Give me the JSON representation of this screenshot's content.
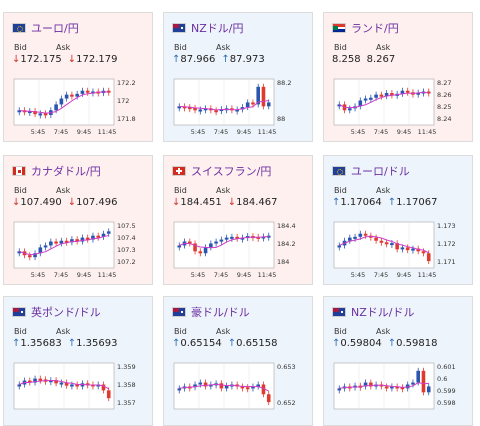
{
  "bid_label": "Bid",
  "ask_label": "Ask",
  "cards": [
    {
      "pair": "ユーロ/円",
      "flag": "eu-flag-icon",
      "dir": "down",
      "bid": "172.175",
      "ask": "172.179",
      "yticks": [
        "172.2",
        "172",
        "171.8"
      ],
      "xticks": [
        "5:45",
        "7:45",
        "9:45",
        "11:45"
      ]
    },
    {
      "pair": "NZドル/円",
      "flag": "nz-flag-icon",
      "dir": "up",
      "bid": "87.966",
      "ask": "87.973",
      "yticks": [
        "88.2",
        "88"
      ],
      "xticks": [
        "5:45",
        "7:45",
        "9:45",
        "11:45"
      ]
    },
    {
      "pair": "ランド/円",
      "flag": "za-flag-icon",
      "dir": "none",
      "bid": "8.258",
      "ask": "8.267",
      "yticks": [
        "8.27",
        "8.26",
        "8.25",
        "8.24"
      ],
      "xticks": [
        "5:45",
        "7:45",
        "9:45",
        "11:45"
      ]
    },
    {
      "pair": "カナダドル/円",
      "flag": "ca-flag-icon",
      "dir": "down",
      "bid": "107.490",
      "ask": "107.496",
      "yticks": [
        "107.5",
        "107.4",
        "107.3",
        "107.2"
      ],
      "xticks": [
        "5:45",
        "7:45",
        "9:45",
        "11:45"
      ]
    },
    {
      "pair": "スイスフラン/円",
      "flag": "ch-flag-icon",
      "dir": "down",
      "bid": "184.451",
      "ask": "184.467",
      "yticks": [
        "184.4",
        "184.2",
        "184"
      ],
      "xticks": [
        "5:45",
        "7:45",
        "9:45",
        "11:45"
      ]
    },
    {
      "pair": "ユーロ/ドル",
      "flag": "eu-flag-icon",
      "dir": "up",
      "bid": "1.17064",
      "ask": "1.17067",
      "yticks": [
        "1.173",
        "1.172",
        "1.171"
      ],
      "xticks": [
        "5:45",
        "7:45",
        "9:45",
        "11:45"
      ]
    },
    {
      "pair": "英ポンド/ドル",
      "flag": "uk-flag-icon",
      "dir": "up",
      "bid": "1.35683",
      "ask": "1.35693",
      "yticks": [
        "1.359",
        "1.358",
        "1.357"
      ],
      "xticks": []
    },
    {
      "pair": "豪ドル/ドル",
      "flag": "au-flag-icon",
      "dir": "up",
      "bid": "0.65154",
      "ask": "0.65158",
      "yticks": [
        "0.653",
        "0.652"
      ],
      "xticks": []
    },
    {
      "pair": "NZドル/ドル",
      "flag": "nz-flag-icon",
      "dir": "up",
      "bid": "0.59804",
      "ask": "0.59818",
      "yticks": [
        "0.601",
        "0.6",
        "0.599",
        "0.598"
      ],
      "xticks": []
    }
  ],
  "colors": {
    "up_candle": "#2a56b0",
    "down_candle": "#e03a2f",
    "ma": "#d23cc8",
    "down_arrow": "#d0302b",
    "up_arrow": "#2c6db5"
  }
}
